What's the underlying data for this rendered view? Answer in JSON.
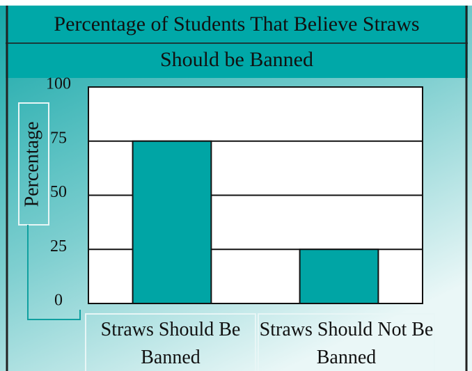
{
  "chart_data": {
    "type": "bar",
    "title": [
      "Percentage of Students That Believe Straws",
      "Should be Banned"
    ],
    "y_label": "Percentage",
    "categories": [
      "Straws Should Be Banned",
      "Straws Should Not Be Banned"
    ],
    "values": [
      75,
      25
    ],
    "color": "#00a5a5",
    "ylim": [
      0,
      100
    ],
    "yticks": [
      0,
      25,
      50,
      75,
      100
    ],
    "grid": true
  }
}
